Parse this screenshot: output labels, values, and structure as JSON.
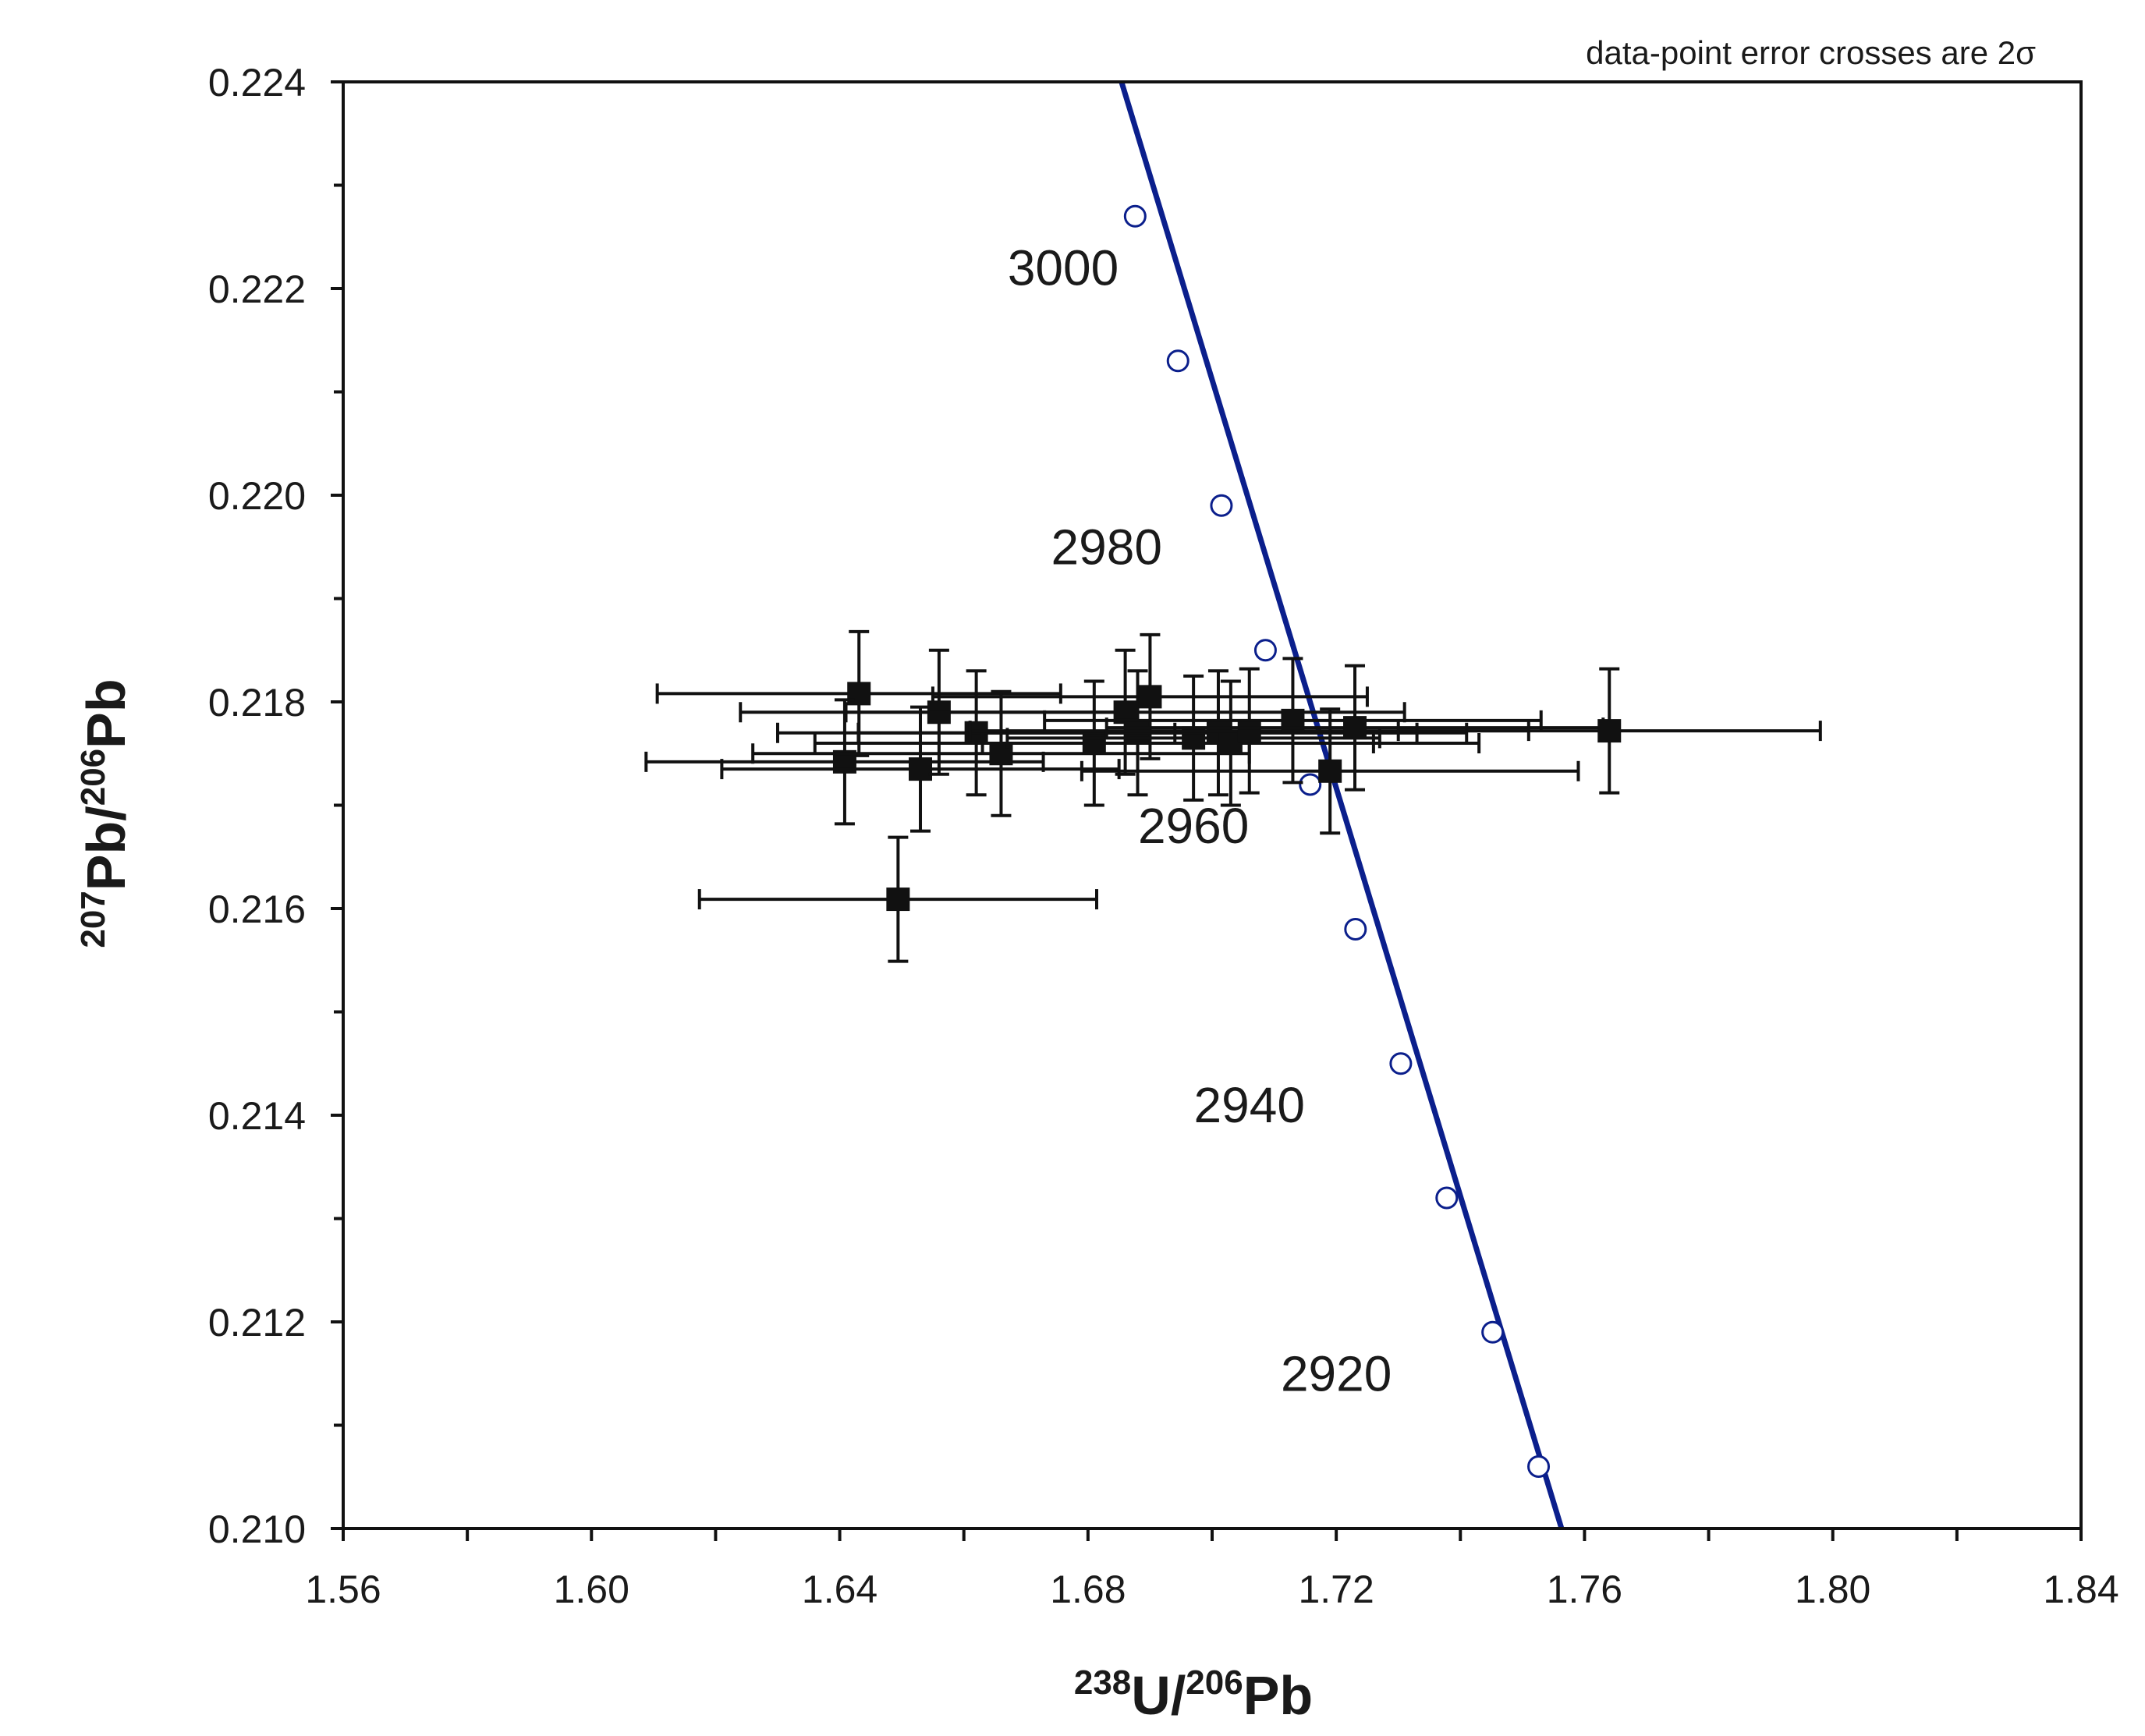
{
  "chart_data": {
    "type": "scatter",
    "title": "",
    "note": "data-point error crosses are 2σ",
    "xlabel": {
      "sup1": "238",
      "main1": "U/",
      "sup2": "206",
      "main2": "Pb"
    },
    "ylabel": {
      "sup1": "207",
      "main1": "Pb/",
      "sup2": "206",
      "main2": "Pb"
    },
    "xlim": [
      1.56,
      1.84
    ],
    "ylim": [
      0.21,
      0.224
    ],
    "x_ticks": [
      "1.56",
      "1.60",
      "1.64",
      "1.68",
      "1.72",
      "1.76",
      "1.80",
      "1.84"
    ],
    "y_ticks": [
      "0.210",
      "0.212",
      "0.214",
      "0.216",
      "0.218",
      "0.220",
      "0.222",
      "0.224"
    ],
    "grid": false,
    "colors": {
      "concordia": "#0b1f8c",
      "points": "#111111",
      "axes": "#111111"
    },
    "concordia": {
      "name": "",
      "line": [
        [
          1.6854,
          0.224
        ],
        [
          1.7563,
          0.21
        ]
      ],
      "age_markers": [
        {
          "x": 1.6876,
          "y": 0.2227
        },
        {
          "x": 1.6945,
          "y": 0.2213
        },
        {
          "x": 1.7015,
          "y": 0.2199
        },
        {
          "x": 1.7086,
          "y": 0.2185
        },
        {
          "x": 1.7158,
          "y": 0.2172
        },
        {
          "x": 1.7231,
          "y": 0.2158
        },
        {
          "x": 1.7304,
          "y": 0.2145
        },
        {
          "x": 1.7378,
          "y": 0.2132
        },
        {
          "x": 1.7452,
          "y": 0.2119
        },
        {
          "x": 1.7526,
          "y": 0.2106
        }
      ],
      "age_labels": [
        {
          "text": "3000",
          "x": 1.676,
          "y": 0.2222
        },
        {
          "text": "2980",
          "x": 1.683,
          "y": 0.2195
        },
        {
          "text": "2960",
          "x": 1.697,
          "y": 0.2168
        },
        {
          "text": "2940",
          "x": 1.706,
          "y": 0.2141
        },
        {
          "text": "2920",
          "x": 1.72,
          "y": 0.2115
        }
      ]
    },
    "points": [
      {
        "x": 1.6431,
        "y": 0.21808,
        "xerr": 0.0325,
        "yerr": 0.0006
      },
      {
        "x": 1.6408,
        "y": 0.21742,
        "xerr": 0.032,
        "yerr": 0.0006
      },
      {
        "x": 1.6494,
        "y": 0.21609,
        "xerr": 0.032,
        "yerr": 0.0006
      },
      {
        "x": 1.653,
        "y": 0.21735,
        "xerr": 0.032,
        "yerr": 0.0006
      },
      {
        "x": 1.656,
        "y": 0.2179,
        "xerr": 0.032,
        "yerr": 0.0006
      },
      {
        "x": 1.662,
        "y": 0.2177,
        "xerr": 0.032,
        "yerr": 0.0006
      },
      {
        "x": 1.666,
        "y": 0.2175,
        "xerr": 0.04,
        "yerr": 0.0006
      },
      {
        "x": 1.681,
        "y": 0.2176,
        "xerr": 0.045,
        "yerr": 0.0006
      },
      {
        "x": 1.686,
        "y": 0.2179,
        "xerr": 0.045,
        "yerr": 0.0006
      },
      {
        "x": 1.688,
        "y": 0.2177,
        "xerr": 0.045,
        "yerr": 0.0006
      },
      {
        "x": 1.69,
        "y": 0.21805,
        "xerr": 0.035,
        "yerr": 0.0006
      },
      {
        "x": 1.697,
        "y": 0.21765,
        "xerr": 0.03,
        "yerr": 0.0006
      },
      {
        "x": 1.701,
        "y": 0.2177,
        "xerr": 0.04,
        "yerr": 0.0006
      },
      {
        "x": 1.703,
        "y": 0.2176,
        "xerr": 0.04,
        "yerr": 0.0006
      },
      {
        "x": 1.706,
        "y": 0.21772,
        "xerr": 0.045,
        "yerr": 0.0006
      },
      {
        "x": 1.713,
        "y": 0.21782,
        "xerr": 0.04,
        "yerr": 0.0006
      },
      {
        "x": 1.719,
        "y": 0.21733,
        "xerr": 0.04,
        "yerr": 0.0006
      },
      {
        "x": 1.723,
        "y": 0.21775,
        "xerr": 0.04,
        "yerr": 0.0006
      },
      {
        "x": 1.764,
        "y": 0.21772,
        "xerr": 0.034,
        "yerr": 0.0006
      }
    ]
  }
}
